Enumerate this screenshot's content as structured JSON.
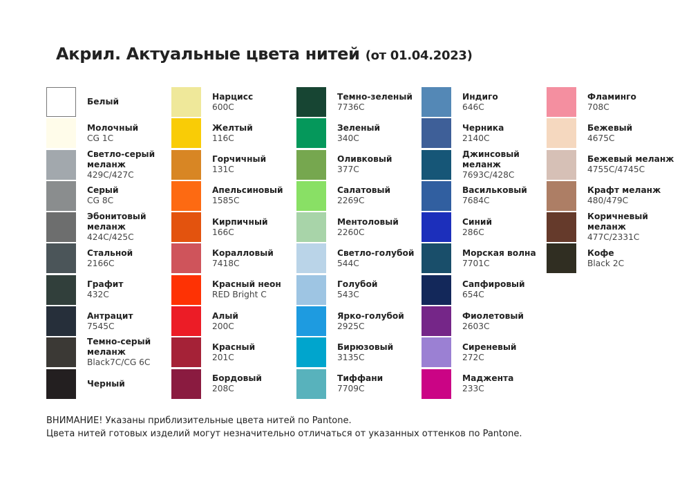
{
  "title": {
    "main": "Акрил. Актуальные цвета нитей",
    "date": "(от 01.04.2023)"
  },
  "columns": [
    [
      {
        "name": "Белый",
        "code": "",
        "color": "#ffffff",
        "border": true
      },
      {
        "name": "Молочный",
        "code": "CG 1C",
        "color": "#fffcea"
      },
      {
        "name": "Светло-серый меланж",
        "code": "429C/427C",
        "color": "#a2a8ad"
      },
      {
        "name": "Серый",
        "code": "CG 8C",
        "color": "#8a8d8e"
      },
      {
        "name": "Эбонитовый меланж",
        "code": "424C/425C",
        "color": "#6d6e6e"
      },
      {
        "name": "Стальной",
        "code": "2166C",
        "color": "#4b5559"
      },
      {
        "name": "Графит",
        "code": "432C",
        "color": "#313f3b"
      },
      {
        "name": "Антрацит",
        "code": "7545C",
        "color": "#262f3a"
      },
      {
        "name": "Темно-серый меланж",
        "code": "Black7C/CG 6C",
        "color": "#3b3935"
      },
      {
        "name": "Черный",
        "code": "",
        "color": "#231f20"
      }
    ],
    [
      {
        "name": "Нарцисс",
        "code": "600C",
        "color": "#efe89a"
      },
      {
        "name": "Желтый",
        "code": "116C",
        "color": "#f9cc06"
      },
      {
        "name": "Горчичный",
        "code": "131C",
        "color": "#d88624"
      },
      {
        "name": "Апельсиновый",
        "code": "1585C",
        "color": "#fd6a12"
      },
      {
        "name": "Кирпичный",
        "code": "166C",
        "color": "#e3530e"
      },
      {
        "name": "Коралловый",
        "code": "7418C",
        "color": "#cf545b"
      },
      {
        "name": "Красный неон",
        "code": "RED Bright C",
        "color": "#fe3204"
      },
      {
        "name": "Алый",
        "code": "200C",
        "color": "#ec1c26"
      },
      {
        "name": "Красный",
        "code": "201C",
        "color": "#a52237"
      },
      {
        "name": "Бордовый",
        "code": "208C",
        "color": "#8a1b40"
      }
    ],
    [
      {
        "name": "Темно-зеленый",
        "code": "7736C",
        "color": "#174533"
      },
      {
        "name": "Зеленый",
        "code": "340C",
        "color": "#05985b"
      },
      {
        "name": "Оливковый",
        "code": "377C",
        "color": "#76a74f"
      },
      {
        "name": "Салатовый",
        "code": "2269C",
        "color": "#89e065"
      },
      {
        "name": "Ментоловый",
        "code": "2260C",
        "color": "#a8d4a9"
      },
      {
        "name": "Светло-голубой",
        "code": "544C",
        "color": "#bad4e8"
      },
      {
        "name": "Голубой",
        "code": "543C",
        "color": "#9ec5e3"
      },
      {
        "name": "Ярко-голубой",
        "code": "2925C",
        "color": "#1e9be0"
      },
      {
        "name": "Бирюзовый",
        "code": "3135C",
        "color": "#00a5cd"
      },
      {
        "name": "Тиффани",
        "code": "7709C",
        "color": "#58b2bc"
      }
    ],
    [
      {
        "name": "Индиго",
        "code": "646C",
        "color": "#5488b6"
      },
      {
        "name": "Черника",
        "code": "2140C",
        "color": "#3e5f98"
      },
      {
        "name": "Джинсовый меланж",
        "code": "7693C/428C",
        "color": "#165677"
      },
      {
        "name": "Васильковый",
        "code": "7684C",
        "color": "#315fa0"
      },
      {
        "name": "Синий",
        "code": "286C",
        "color": "#1c2fbb"
      },
      {
        "name": "Морская волна",
        "code": "7701C",
        "color": "#194e6a"
      },
      {
        "name": "Сапфировый",
        "code": "654C",
        "color": "#13285a"
      },
      {
        "name": "Фиолетовый",
        "code": "2603C",
        "color": "#752688"
      },
      {
        "name": "Сиреневый",
        "code": "272C",
        "color": "#9b80d3"
      },
      {
        "name": "Маджента",
        "code": "233C",
        "color": "#cb0485"
      }
    ],
    [
      {
        "name": "Фламинго",
        "code": "708C",
        "color": "#f48fa0"
      },
      {
        "name": "Бежевый",
        "code": "4675C",
        "color": "#f5d8bf"
      },
      {
        "name": "Бежевый меланж",
        "code": "4755C/4745C",
        "color": "#d6c0b6"
      },
      {
        "name": "Крафт меланж",
        "code": "480/479C",
        "color": "#ad7e65"
      },
      {
        "name": "Коричневый меланж",
        "code": "477C/2331C",
        "color": "#653a2b"
      },
      {
        "name": "Кофе",
        "code": "Black 2C",
        "color": "#302e22"
      }
    ]
  ],
  "note": {
    "line1": "ВНИМАНИЕ! Указаны приблизительные цвета нитей по Pantone.",
    "line2": "Цвета нитей готовых изделий могут незначительно отличаться от указанных оттенков по Pantone."
  }
}
